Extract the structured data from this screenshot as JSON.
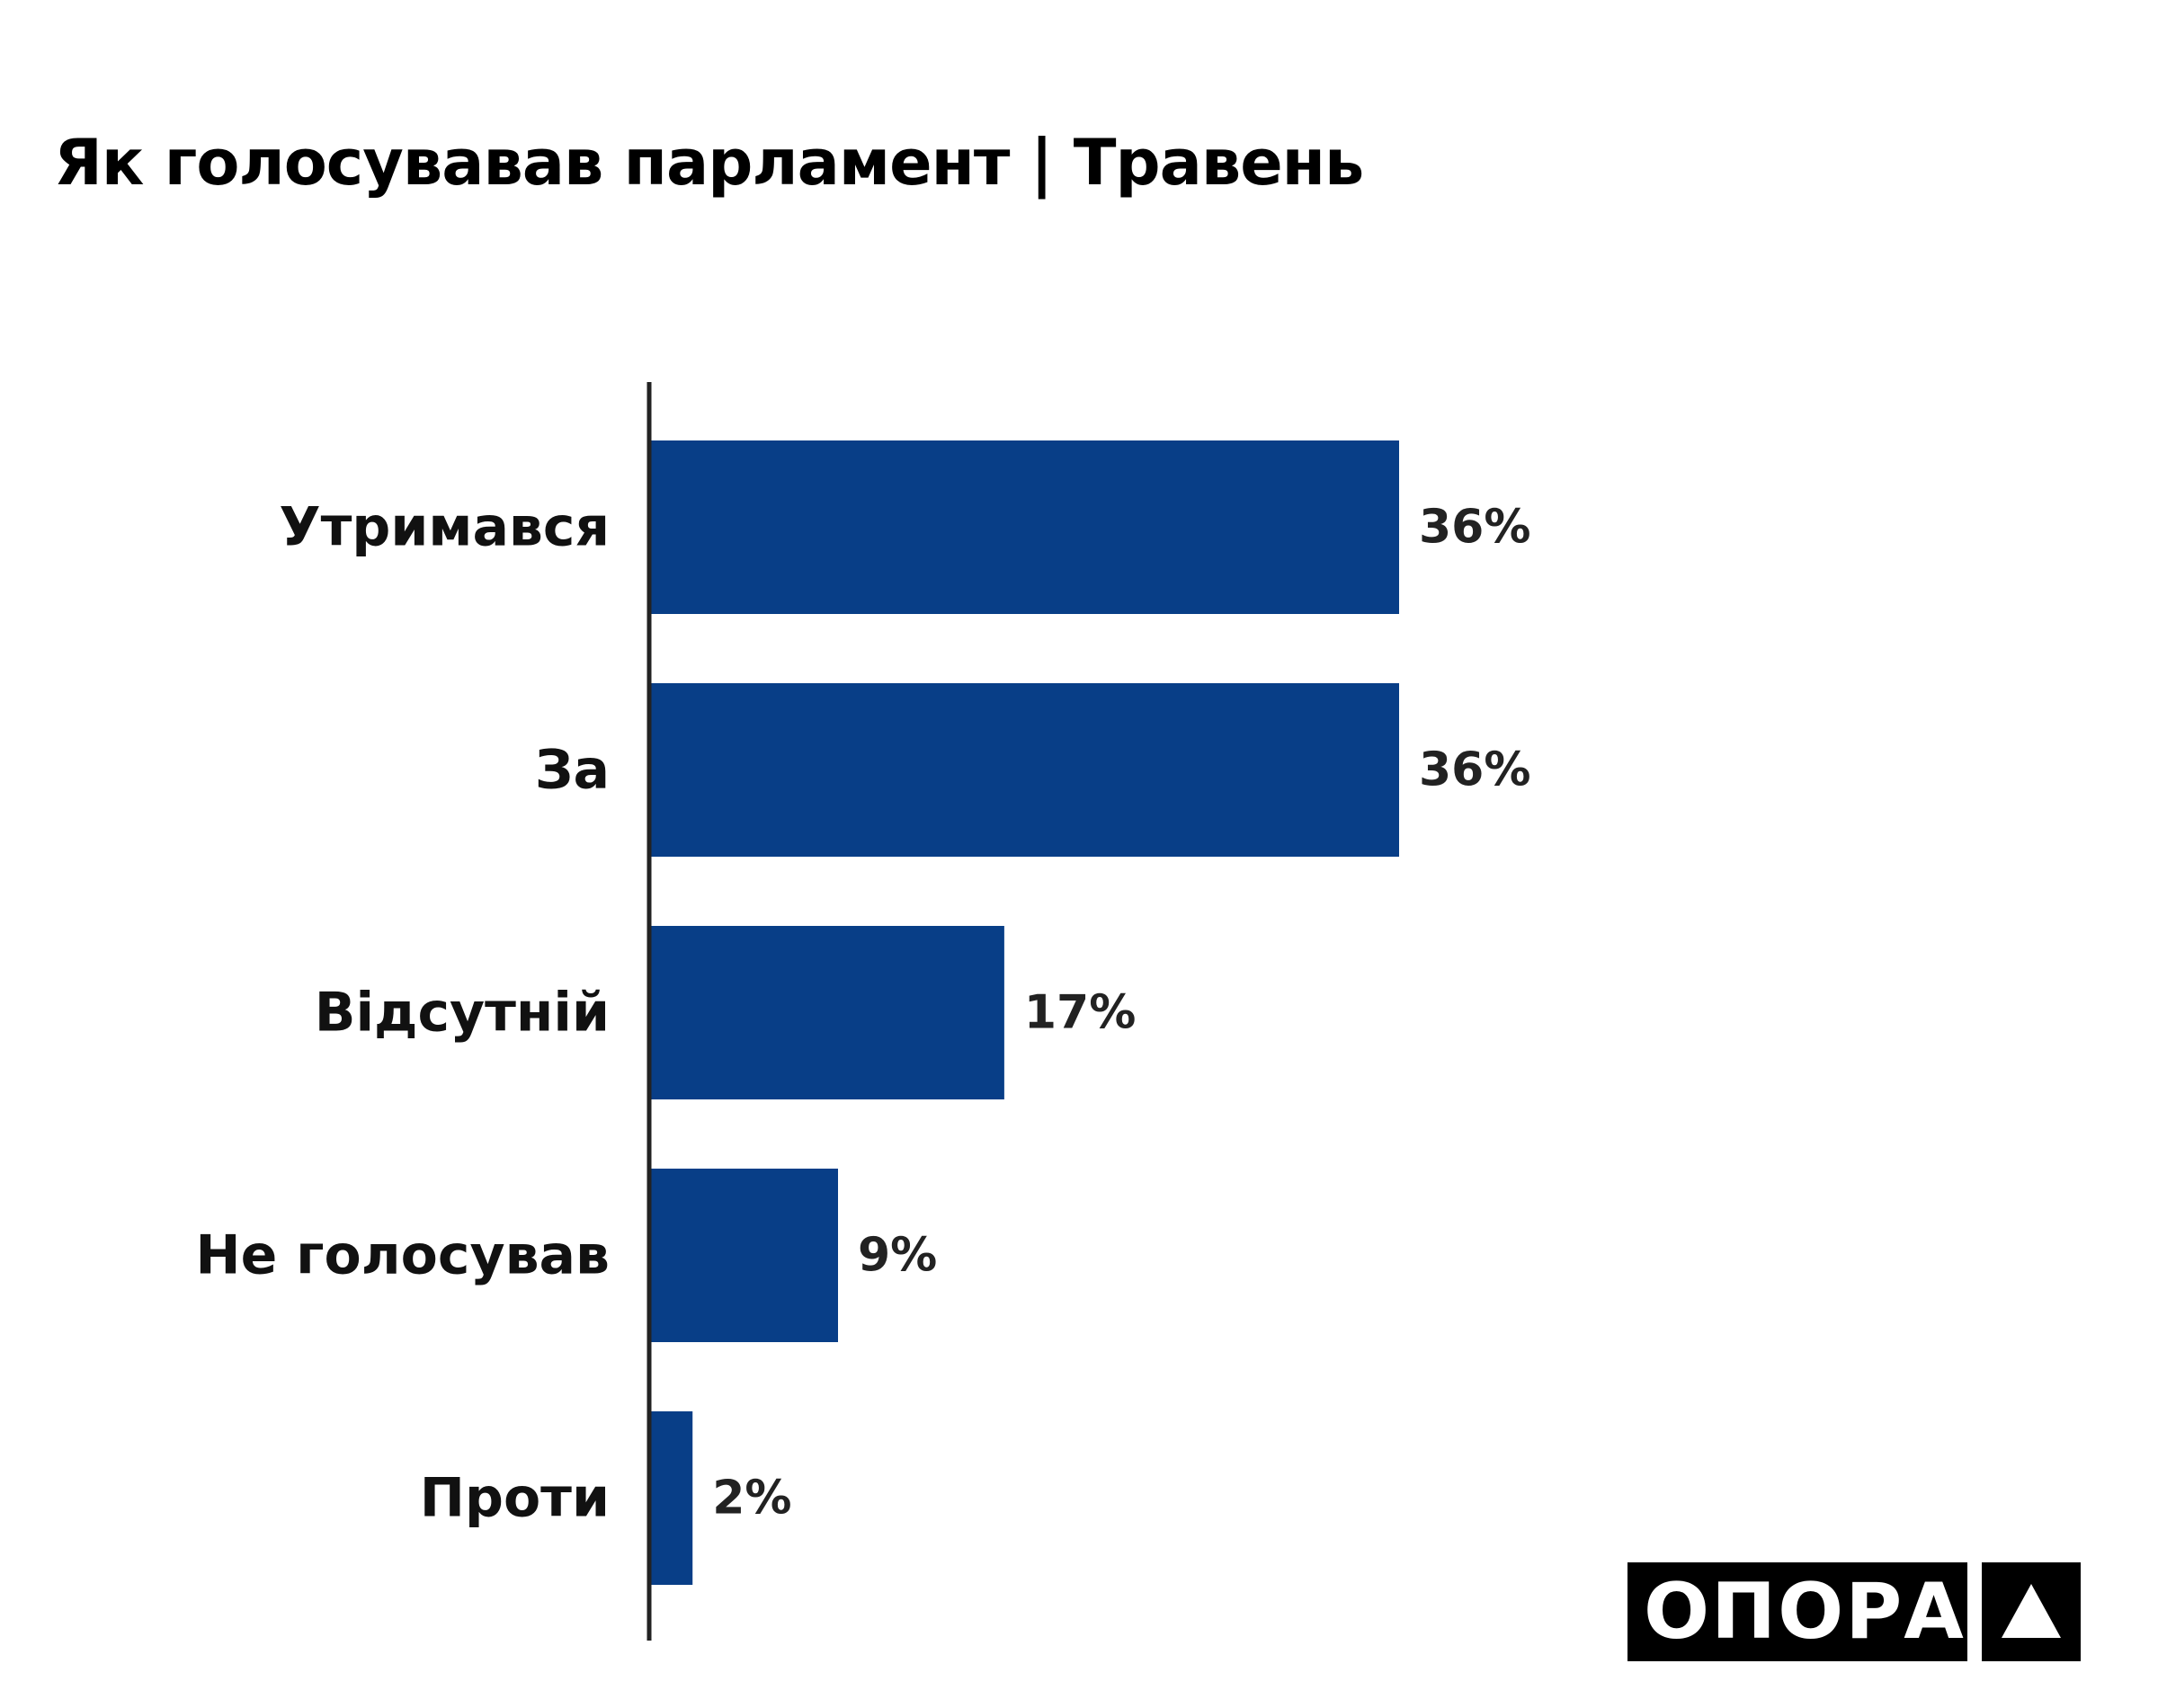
{
  "chart_data": {
    "type": "bar",
    "orientation": "horizontal",
    "title": "Як голосувавав парламент | Травень",
    "categories": [
      "Утримався",
      "За",
      "Відсутній",
      "Не голосував",
      "Проти"
    ],
    "values": [
      36,
      36,
      17,
      9,
      2
    ],
    "value_labels": [
      "36%",
      "36%",
      "17%",
      "9%",
      "2%"
    ],
    "unit": "%",
    "xlim": [
      0,
      36
    ],
    "grid": false,
    "legend": "none",
    "bar_color": "#083e87"
  },
  "brand": {
    "logo_text": "ОПОРА",
    "logo_mark_icon": "triangle-icon"
  }
}
